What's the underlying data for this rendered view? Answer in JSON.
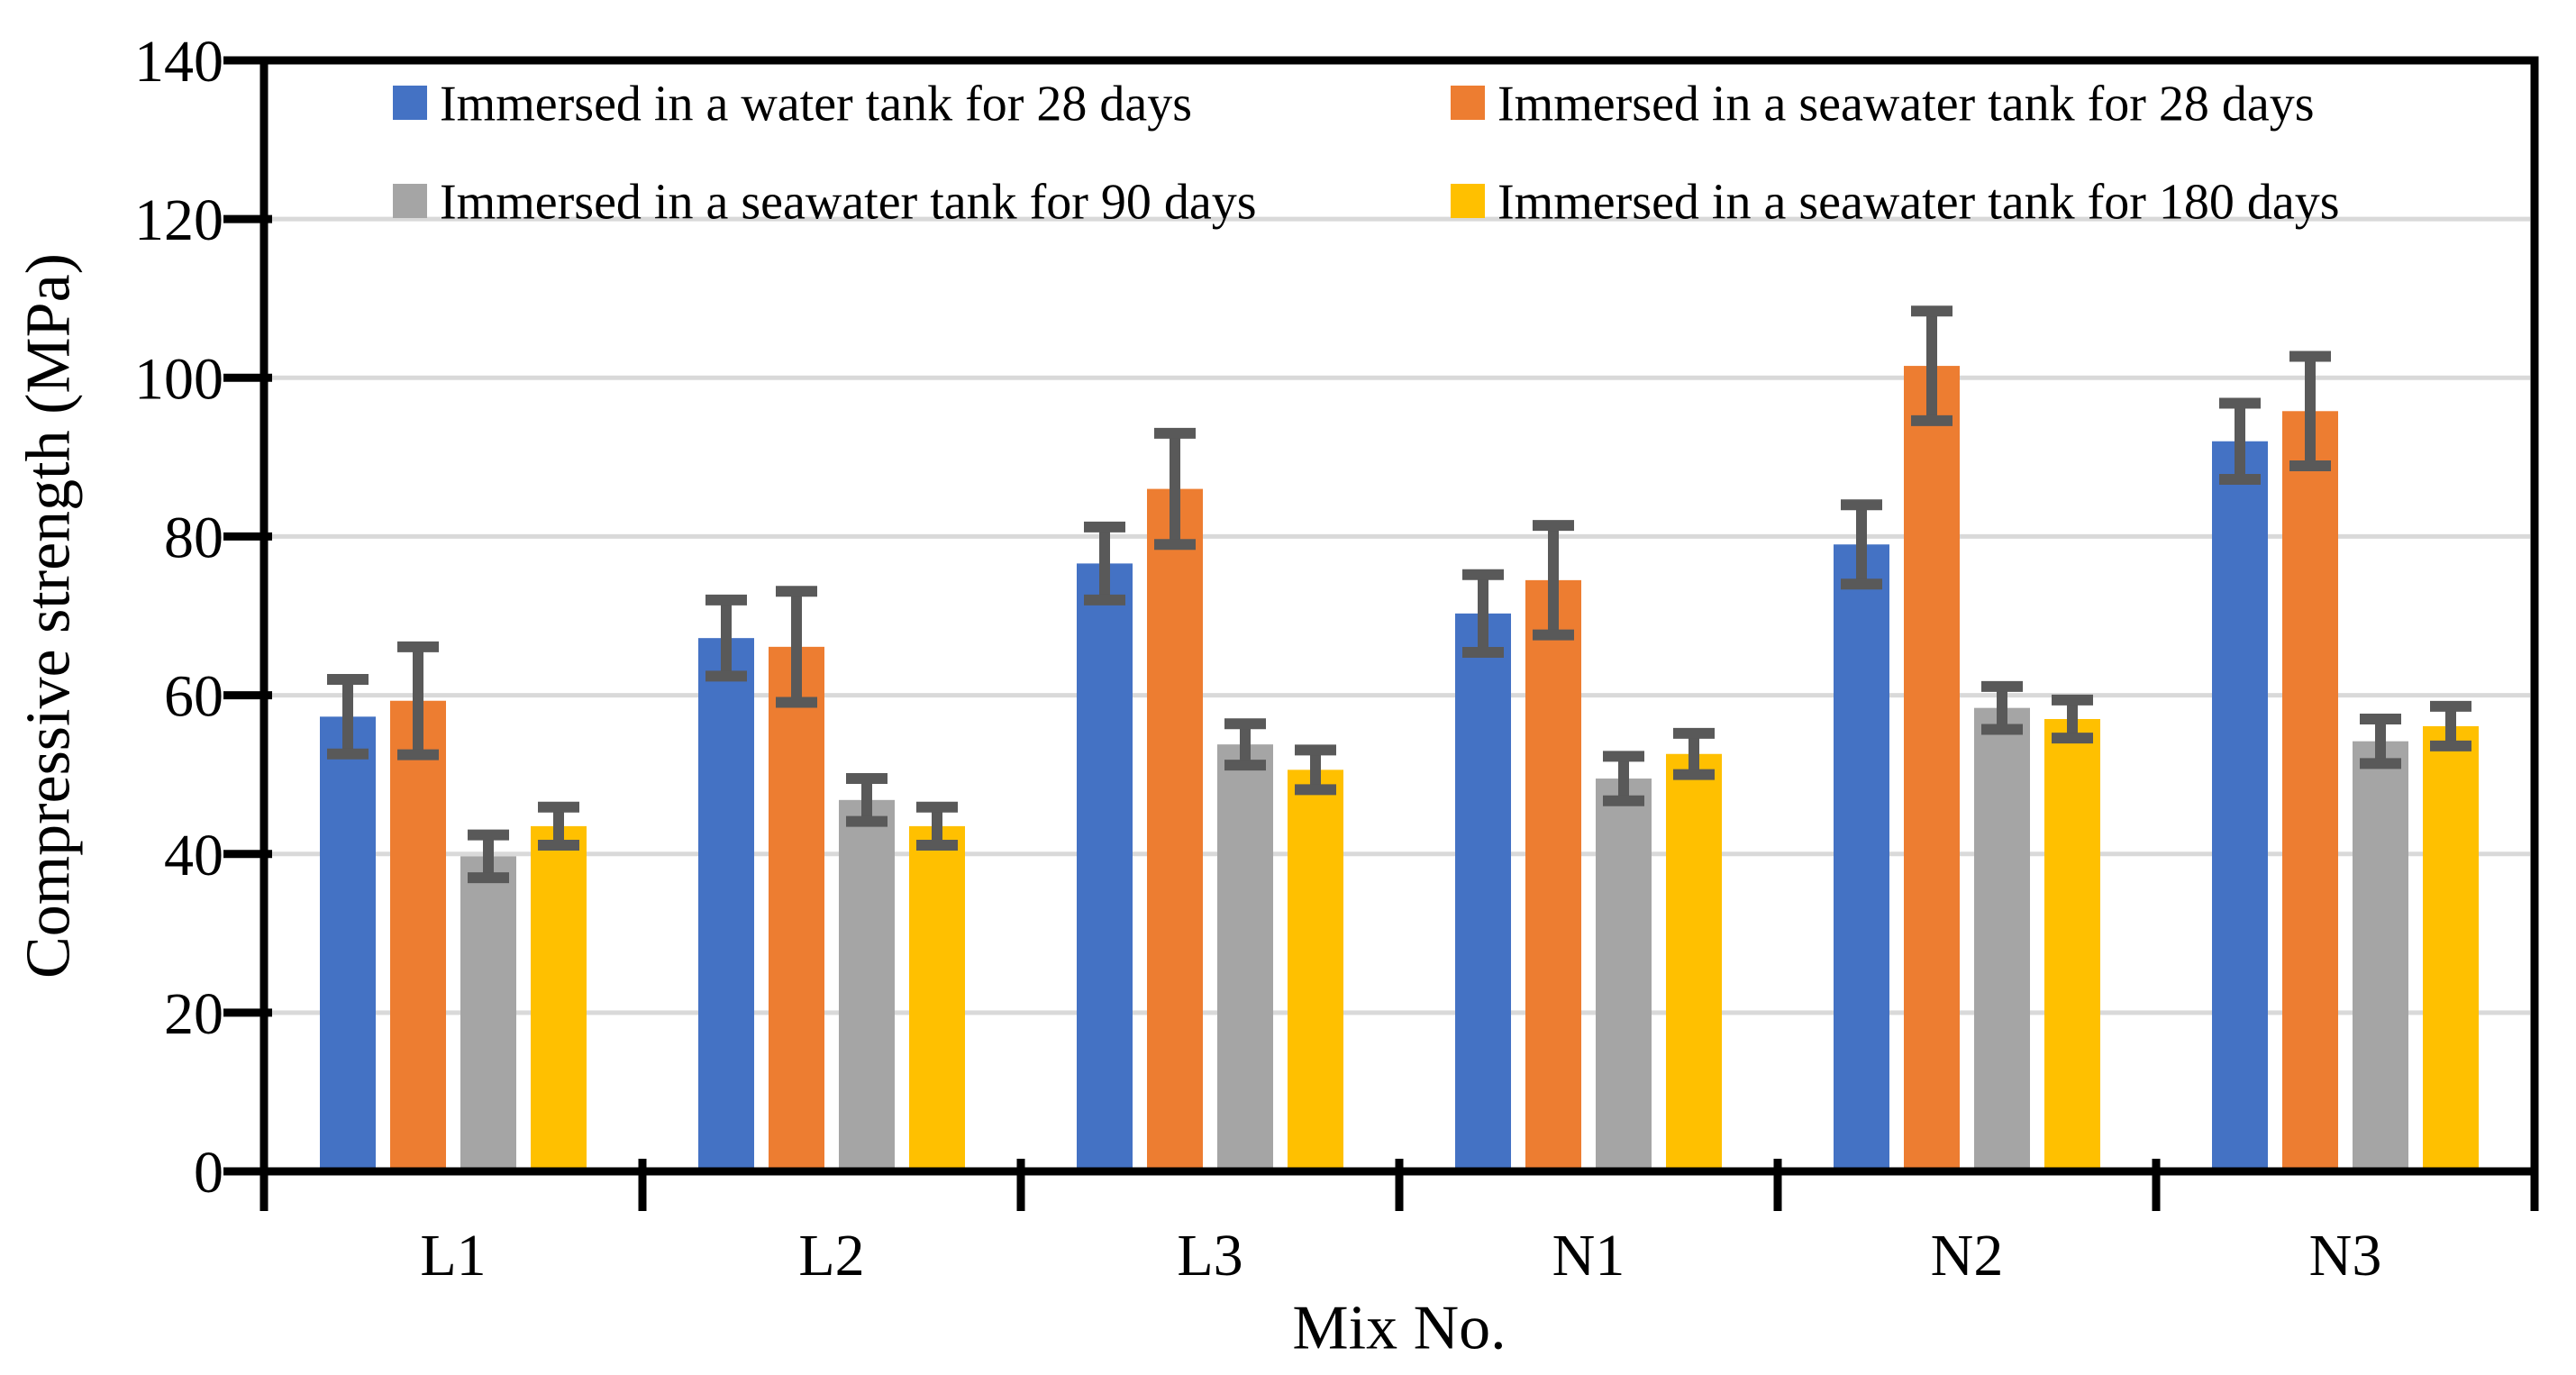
{
  "chart_data": {
    "type": "bar",
    "title": "",
    "xlabel": "Mix No.",
    "ylabel": "Compressive strength (MPa)",
    "categories": [
      "L1",
      "L2",
      "L3",
      "N1",
      "N2",
      "N3"
    ],
    "ylim": [
      0,
      140
    ],
    "ytick_step": 20,
    "ytick_labels": [
      "0",
      "20",
      "40",
      "60",
      "80",
      "100",
      "120",
      "140"
    ],
    "grid": true,
    "legend_position": "top-inside-two-columns",
    "series": [
      {
        "name": "Immersed in a water tank for 28 days",
        "color": "#4472C4",
        "values": [
          57.3,
          67.2,
          76.6,
          70.3,
          79.0,
          92.0
        ],
        "errors": [
          4.7,
          4.8,
          4.6,
          4.9,
          5.0,
          4.8
        ]
      },
      {
        "name": "Immersed in a seawater tank for 28 days",
        "color": "#ED7D31",
        "values": [
          59.3,
          66.1,
          86.0,
          74.5,
          101.5,
          95.8
        ],
        "errors": [
          6.8,
          7.0,
          7.0,
          6.9,
          6.9,
          6.9
        ]
      },
      {
        "name": "Immersed in a seawater tank for 90 days",
        "color": "#A5A5A5",
        "values": [
          39.7,
          46.8,
          53.8,
          49.5,
          58.4,
          54.2
        ],
        "errors": [
          2.7,
          2.7,
          2.6,
          2.8,
          2.7,
          2.8
        ]
      },
      {
        "name": "Immersed in a seawater tank for 180 days",
        "color": "#FFC000",
        "values": [
          43.5,
          43.5,
          50.6,
          52.6,
          57.0,
          56.1
        ],
        "errors": [
          2.4,
          2.4,
          2.5,
          2.6,
          2.4,
          2.5
        ]
      }
    ],
    "colors": {
      "error_bar": "#595959",
      "gridline": "#D9D9D9",
      "axis": "#000000",
      "background": "#FFFFFF"
    }
  }
}
